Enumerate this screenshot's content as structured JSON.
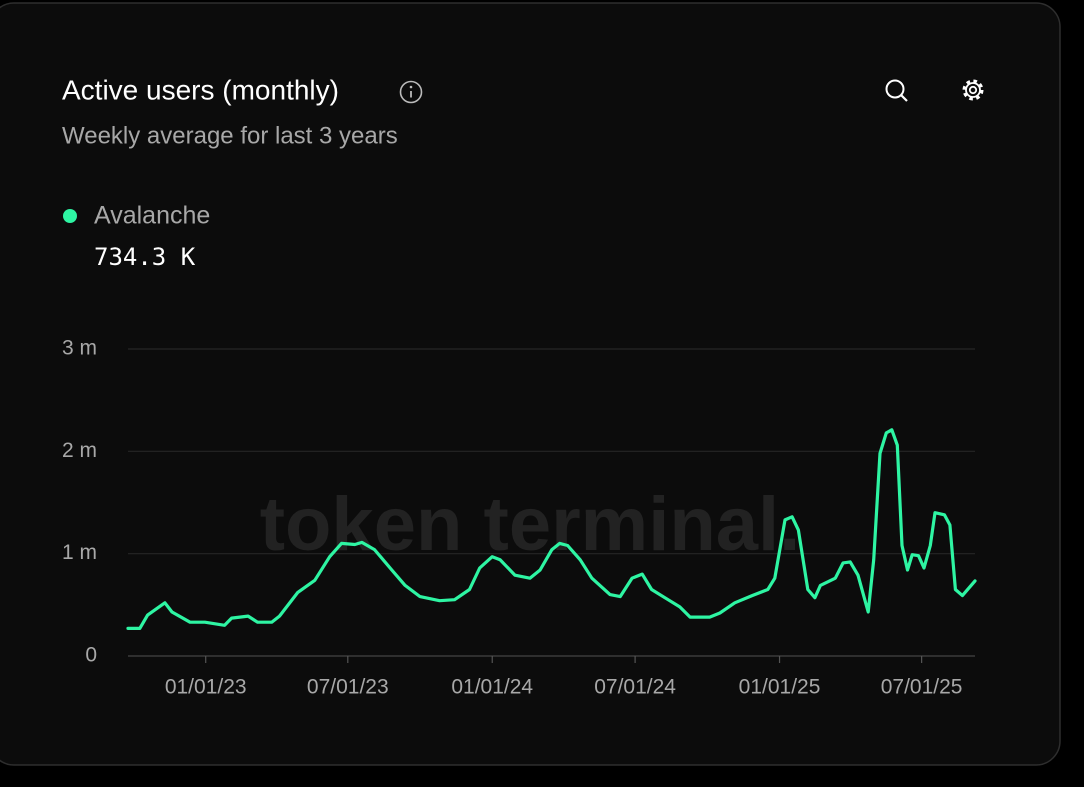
{
  "chart_data": {
    "type": "line",
    "title": "Active users (monthly)",
    "subtitle": "Weekly average for last 3 years",
    "watermark": "token terminal.",
    "latest": {
      "value": 734300,
      "label": "734.3 K"
    },
    "x": [
      "09/24/22",
      "10/09/22",
      "10/19/22",
      "11/10/22",
      "11/19/22",
      "12/12/22",
      "12/31/22",
      "01/25/23",
      "02/03/23",
      "02/24/23",
      "03/08/23",
      "03/26/23",
      "04/05/23",
      "04/28/23",
      "05/20/23",
      "06/08/23",
      "06/23/23",
      "07/10/23",
      "07/19/23",
      "08/04/23",
      "08/26/23",
      "09/12/23",
      "10/01/23",
      "10/26/23",
      "11/14/23",
      "12/03/23",
      "12/16/23",
      "01/01/24",
      "01/11/24",
      "01/30/24",
      "02/18/24",
      "03/02/24",
      "03/17/24",
      "03/27/24",
      "04/06/24",
      "04/22/24",
      "05/07/24",
      "05/30/24",
      "06/12/24",
      "06/27/24",
      "07/10/24",
      "07/22/24",
      "08/12/24",
      "08/27/24",
      "09/09/24",
      "10/04/24",
      "10/17/24",
      "11/05/24",
      "11/27/24",
      "12/17/24",
      "12/26/24",
      "01/08/25",
      "01/17/25",
      "01/25/25",
      "02/06/25",
      "02/15/25",
      "02/22/25",
      "03/13/25",
      "03/23/25",
      "04/01/25",
      "04/11/25",
      "04/24/25",
      "05/01/25",
      "05/09/25",
      "05/17/25",
      "05/24/25",
      "05/31/25",
      "06/06/25",
      "06/13/25",
      "06/19/25",
      "06/27/25",
      "07/04/25",
      "07/12/25",
      "07/18/25",
      "07/30/25",
      "08/06/25",
      "08/13/25",
      "08/22/25",
      "09/07/25"
    ],
    "series": [
      {
        "name": "Avalanche",
        "color": "#2ef5a3",
        "values": [
          270000,
          270000,
          400000,
          520000,
          430000,
          330000,
          330000,
          300000,
          370000,
          390000,
          330000,
          330000,
          390000,
          620000,
          740000,
          970000,
          1100000,
          1090000,
          1110000,
          1040000,
          840000,
          690000,
          580000,
          540000,
          550000,
          650000,
          860000,
          970000,
          940000,
          790000,
          760000,
          840000,
          1040000,
          1100000,
          1080000,
          940000,
          760000,
          600000,
          580000,
          760000,
          800000,
          650000,
          550000,
          480000,
          380000,
          380000,
          420000,
          520000,
          590000,
          650000,
          760000,
          1330000,
          1360000,
          1230000,
          650000,
          570000,
          690000,
          760000,
          910000,
          920000,
          790000,
          430000,
          940000,
          1980000,
          2180000,
          2210000,
          2060000,
          1080000,
          840000,
          990000,
          980000,
          860000,
          1080000,
          1400000,
          1380000,
          1280000,
          650000,
          590000,
          734300
        ]
      }
    ],
    "xlim": [
      "09/24/22",
      "09/07/25"
    ],
    "xticks": [
      "01/01/23",
      "07/01/23",
      "01/01/24",
      "07/01/24",
      "01/01/25",
      "07/01/25"
    ],
    "ylim": [
      0,
      3000000
    ],
    "yticks": [
      0,
      {
        "value": 1000000,
        "label": "1 m"
      },
      {
        "value": 2000000,
        "label": "2 m"
      },
      {
        "value": 3000000,
        "label": "3 m"
      }
    ],
    "grid": true
  }
}
